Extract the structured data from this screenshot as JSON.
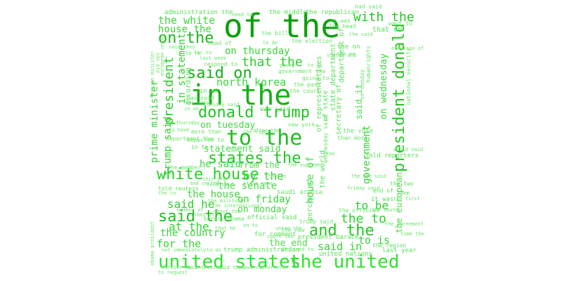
{
  "cloud": {
    "words": [
      {
        "text": "of the",
        "color": "#0ba10b"
      },
      {
        "text": "in the",
        "color": "#16b016"
      },
      {
        "text": "to the",
        "color": "#1fbe1f"
      },
      {
        "text": "united states",
        "color": "#2ee42e"
      },
      {
        "text": "the united",
        "color": "#2ee42e"
      },
      {
        "text": "said on",
        "color": "#19b019"
      },
      {
        "text": "on the",
        "color": "#1db41d"
      },
      {
        "text": "donald trump",
        "color": "#24c424"
      },
      {
        "text": "states the",
        "color": "#22c622"
      },
      {
        "text": "white house",
        "color": "#27cf27"
      },
      {
        "text": "said the",
        "color": "#1fbe1f"
      },
      {
        "text": "and the",
        "color": "#22c622"
      },
      {
        "text": "with the",
        "color": "#22c622"
      },
      {
        "text": "president donald",
        "color": "#22c622"
      },
      {
        "text": "the white",
        "color": "#3cd83c"
      },
      {
        "text": "house the",
        "color": "#37d637"
      },
      {
        "text": "on thursday",
        "color": "#35d435"
      },
      {
        "text": "that the",
        "color": "#2bcf2b"
      },
      {
        "text": "north korea",
        "color": "#3ad63a"
      },
      {
        "text": "president",
        "color": "#2acb2a"
      },
      {
        "text": "in statement",
        "color": "#31cf31"
      },
      {
        "text": "prime minister",
        "color": "#3bd23b"
      },
      {
        "text": "trump said",
        "color": "#36d036"
      },
      {
        "text": "on tuesday",
        "color": "#40d640"
      },
      {
        "text": "statement said",
        "color": "#49dc49"
      },
      {
        "text": "he said",
        "color": "#40d640"
      },
      {
        "text": "from the",
        "color": "#49dc49"
      },
      {
        "text": "by the",
        "color": "#3bd23b"
      },
      {
        "text": "the senate",
        "color": "#49dc49"
      },
      {
        "text": "the house",
        "color": "#40d640"
      },
      {
        "text": "on friday",
        "color": "#33d433"
      },
      {
        "text": "said he",
        "color": "#31cf31"
      },
      {
        "text": "on monday",
        "color": "#40d640"
      },
      {
        "text": "at the",
        "color": "#33d433"
      },
      {
        "text": "the country",
        "color": "#37d637"
      },
      {
        "text": "for the",
        "color": "#33d433"
      },
      {
        "text": "the end",
        "color": "#49dc49"
      },
      {
        "text": "said in",
        "color": "#33d433"
      },
      {
        "text": "to is",
        "color": "#3bd23b"
      },
      {
        "text": "the to",
        "color": "#2bcf2b"
      },
      {
        "text": "to be",
        "color": "#2bcf2b"
      },
      {
        "text": "government",
        "color": "#3bd23b"
      },
      {
        "text": "on wednesday",
        "color": "#40d640"
      },
      {
        "text": "house of",
        "color": "#49dc49"
      },
      {
        "text": "said it",
        "color": "#49dc49"
      },
      {
        "text": "the european",
        "color": "#49dc49"
      },
      {
        "text": "administration the",
        "color": "#58e058"
      },
      {
        "text": "the middle",
        "color": "#58e058"
      },
      {
        "text": "the republican",
        "color": "#58e058"
      },
      {
        "text": "had said",
        "color": "#66e466"
      },
      {
        "text": "to was",
        "color": "#66e466"
      },
      {
        "text": "the head",
        "color": "#66e466"
      },
      {
        "text": "the bill",
        "color": "#66e466"
      },
      {
        "text": "the election",
        "color": "#66e466"
      },
      {
        "text": "that on",
        "color": "#58e058"
      },
      {
        "text": "want to",
        "color": "#66e466"
      },
      {
        "text": "the said",
        "color": "#66e466"
      },
      {
        "text": "the on",
        "color": "#58e058"
      },
      {
        "text": "head of",
        "color": "#66e466"
      },
      {
        "text": "respond to",
        "color": "#66e466"
      },
      {
        "text": "going to",
        "color": "#66e466"
      },
      {
        "text": "the past",
        "color": "#66e466"
      },
      {
        "text": "the court",
        "color": "#66e466"
      },
      {
        "text": "government the",
        "color": "#66e466"
      },
      {
        "text": "in an",
        "color": "#58e058"
      },
      {
        "text": "has said",
        "color": "#66e466"
      },
      {
        "text": "according",
        "color": "#58e058"
      },
      {
        "text": "was said",
        "color": "#58e058"
      },
      {
        "text": "new york",
        "color": "#66e466"
      },
      {
        "text": "more than",
        "color": "#66e466"
      },
      {
        "text": "department the",
        "color": "#66e466"
      },
      {
        "text": "expected to",
        "color": "#66e466"
      },
      {
        "text": "in to",
        "color": "#58e058"
      },
      {
        "text": "the vote",
        "color": "#66e466"
      },
      {
        "text": "than more",
        "color": "#66e466"
      },
      {
        "text": "told reporters",
        "color": "#58e058"
      },
      {
        "text": "told reuters",
        "color": "#58e058"
      },
      {
        "text": "saudi arabia",
        "color": "#66e466"
      },
      {
        "text": "official said",
        "color": "#58e058"
      },
      {
        "text": "the new",
        "color": "#66e466"
      },
      {
        "text": "for comment",
        "color": "#58e058"
      },
      {
        "text": "president barack",
        "color": "#58e058"
      },
      {
        "text": "the region",
        "color": "#58e058"
      },
      {
        "text": "last year",
        "color": "#58e058"
      },
      {
        "text": "trump administration",
        "color": "#58e058"
      },
      {
        "text": "united nations",
        "color": "#58e058"
      },
      {
        "text": "news conference",
        "color": "#66e466"
      },
      {
        "text": "an interview",
        "color": "#66e466"
      },
      {
        "text": "barack obama",
        "color": "#66e466"
      },
      {
        "text": "trump said",
        "color": "#66e466"
      },
      {
        "text": "the official",
        "color": "#66e466"
      },
      {
        "text": "it was",
        "color": "#58e058"
      },
      {
        "text": "the member",
        "color": "#66e466"
      },
      {
        "text": "secretary of",
        "color": "#58e058"
      },
      {
        "text": "of representatives",
        "color": "#58e058"
      },
      {
        "text": "state department",
        "color": "#58e058"
      },
      {
        "text": "department of",
        "color": "#58e058"
      },
      {
        "text": "the world",
        "color": "#58e058"
      },
      {
        "text": "percent of",
        "color": "#58e058"
      },
      {
        "text": "wednesday said",
        "color": "#66e466"
      },
      {
        "text": "of state",
        "color": "#58e058"
      },
      {
        "text": "european union",
        "color": "#66e466"
      },
      {
        "text": "said they",
        "color": "#66e466"
      },
      {
        "text": "need to",
        "color": "#66e466"
      },
      {
        "text": "to to",
        "color": "#58e058"
      },
      {
        "text": "to do",
        "color": "#66e466"
      },
      {
        "text": "the on",
        "color": "#58e058"
      },
      {
        "text": "on sunday",
        "color": "#66e466"
      },
      {
        "text": "national security",
        "color": "#66e466"
      },
      {
        "text": "humanrights",
        "color": "#66e466"
      },
      {
        "text": "would said",
        "color": "#66e466"
      },
      {
        "text": "end of",
        "color": "#58e058"
      },
      {
        "text": "the south",
        "color": "#66e466"
      },
      {
        "text": "the two",
        "color": "#58e058"
      },
      {
        "text": "friday said",
        "color": "#66e466"
      },
      {
        "text": "declined to",
        "color": "#66e466"
      },
      {
        "text": "to request",
        "color": "#66e466"
      },
      {
        "text": "earlier this",
        "color": "#66e466"
      },
      {
        "text": "not immediately",
        "color": "#66e466"
      },
      {
        "text": "that he",
        "color": "#66e466"
      },
      {
        "text": "to do",
        "color": "#66e466"
      },
      {
        "text": "said that",
        "color": "#66e466"
      },
      {
        "text": "union the",
        "color": "#66e466"
      },
      {
        "text": "the military",
        "color": "#66e466"
      },
      {
        "text": "the international",
        "color": "#66e466"
      },
      {
        "text": "that it",
        "color": "#66e466"
      },
      {
        "text": "for to",
        "color": "#66e466"
      },
      {
        "text": "last week",
        "color": "#66e466"
      },
      {
        "text": "the right",
        "color": "#66e466"
      },
      {
        "text": "to have",
        "color": "#66e466"
      },
      {
        "text": "on thursday",
        "color": "#66e466"
      },
      {
        "text": "state news",
        "color": "#66e466"
      },
      {
        "text": "tuesday said",
        "color": "#66e466"
      },
      {
        "text": "told said",
        "color": "#66e466"
      },
      {
        "text": "this year",
        "color": "#66e466"
      },
      {
        "text": "and united",
        "color": "#66e466"
      },
      {
        "text": "obama president",
        "color": "#66e466"
      },
      {
        "text": "foreign minister",
        "color": "#66e466"
      },
      {
        "text": "did not",
        "color": "#66e466"
      },
      {
        "text": "the in",
        "color": "#66e466"
      },
      {
        "text": "the said",
        "color": "#66e466"
      },
      {
        "text": "going",
        "color": "#66e466"
      },
      {
        "text": "about the",
        "color": "#66e466"
      },
      {
        "text": "after the",
        "color": "#66e466"
      },
      {
        "text": "election of",
        "color": "#66e466"
      },
      {
        "text": "states and",
        "color": "#66e466"
      },
      {
        "text": "to an",
        "color": "#66e466"
      },
      {
        "text": "member of",
        "color": "#66e466"
      },
      {
        "text": "court the",
        "color": "#66e466"
      },
      {
        "text": "time the",
        "color": "#66e466"
      },
      {
        "text": "the supreme",
        "color": "#66e466"
      },
      {
        "text": "the agreement",
        "color": "#66e466"
      },
      {
        "text": "the first",
        "color": "#66e466"
      },
      {
        "text": "on to",
        "color": "#66e466"
      },
      {
        "text": "the in",
        "color": "#66e466"
      },
      {
        "text": "them",
        "color": "#66e466"
      },
      {
        "text": "the to",
        "color": "#66e466"
      },
      {
        "text": "the",
        "color": "#66e466"
      },
      {
        "text": "in an",
        "color": "#66e466"
      },
      {
        "text": "has said",
        "color": "#66e466"
      }
    ]
  }
}
